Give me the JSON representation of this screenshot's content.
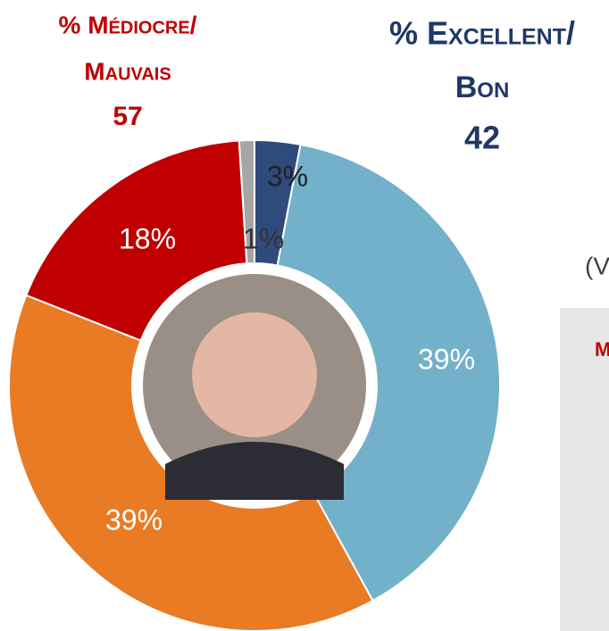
{
  "chart_data": {
    "type": "donut",
    "left_header": {
      "lines": [
        "% Médiocre/",
        "Mauvais"
      ],
      "value": 57,
      "color": "#c00000"
    },
    "right_header": {
      "lines": [
        "% Excellent/",
        "Bon"
      ],
      "value": 42,
      "color": "#1f3864"
    },
    "values": [
      3,
      39,
      39,
      18,
      1
    ],
    "value_labels": [
      "3%",
      "39%",
      "39%",
      "18%",
      "1%"
    ],
    "colors": [
      "#2f4b7c",
      "#72b1c9",
      "#e87b24",
      "#c00000",
      "#a6a6a6"
    ],
    "side_text": "(V",
    "panel_text": "M"
  }
}
